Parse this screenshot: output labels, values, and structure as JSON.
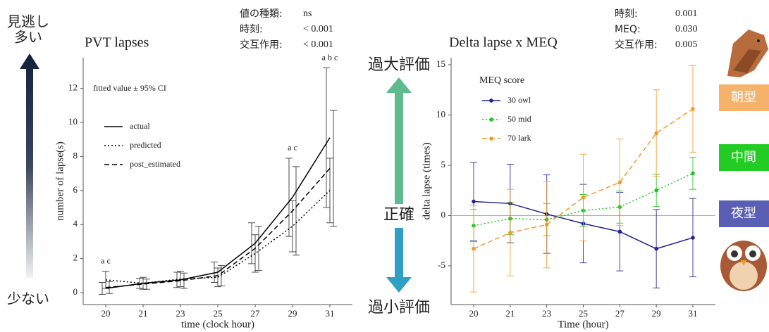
{
  "left_scale": {
    "top": [
      "見逃し",
      "多い"
    ],
    "bottom": "少ない"
  },
  "middle_scale": {
    "top": "過大評価",
    "middle": "正確",
    "bottom": "過小評価"
  },
  "chronotypes": [
    "朝型",
    "中間",
    "夜型"
  ],
  "chart_data": [
    {
      "type": "line",
      "title": "PVT lapses",
      "subtitle": "fitted value ± 95% CI",
      "x_label": "time (clock hour)",
      "y_label": "number of lapse(s)",
      "stats": [
        {
          "label": "値の種類:",
          "value": "ns"
        },
        {
          "label": "時刻:",
          "value": "< 0.001"
        },
        {
          "label": "交互作用:",
          "value": "< 0.001"
        }
      ],
      "categories": [
        "20",
        "21",
        "23",
        "25",
        "27",
        "29",
        "31"
      ],
      "ylim": [
        -0.7,
        13.8
      ],
      "yticks": [
        0,
        2,
        4,
        6,
        8,
        10,
        12
      ],
      "grid": false,
      "legend": "upper left",
      "series": [
        {
          "name": "actual",
          "color": "#000000",
          "dash": "solid",
          "values": [
            0.25,
            0.55,
            0.75,
            1.2,
            2.9,
            5.6,
            9.1
          ],
          "errors": [
            0.35,
            0.3,
            0.45,
            0.6,
            1.2,
            2.3,
            4.1
          ]
        },
        {
          "name": "predicted",
          "color": "#000000",
          "dash": "dotted",
          "values": [
            0.75,
            0.55,
            0.8,
            0.9,
            2.3,
            3.9,
            6.0
          ],
          "errors": [
            0.5,
            0.35,
            0.45,
            0.55,
            1.1,
            1.5,
            1.9
          ]
        },
        {
          "name": "post_estimated",
          "color": "#000000",
          "dash": "dashed",
          "values": [
            0.3,
            0.5,
            0.7,
            1.0,
            2.6,
            4.8,
            7.3
          ],
          "errors": [
            0.35,
            0.3,
            0.45,
            0.6,
            1.3,
            2.6,
            3.4
          ]
        }
      ],
      "letters": [
        "a c",
        null,
        null,
        null,
        null,
        "a c",
        "a b c"
      ]
    },
    {
      "type": "line",
      "title": "Delta lapse x MEQ",
      "x_label": "Time (hour)",
      "y_label": "delta lapse (times)",
      "stats": [
        {
          "label": "時刻:",
          "value": "0.001"
        },
        {
          "label": "MEQ:",
          "value": "0.030"
        },
        {
          "label": "交互作用:",
          "value": "0.005"
        }
      ],
      "categories": [
        "20",
        "21",
        "23",
        "25",
        "27",
        "29",
        "31"
      ],
      "ylim": [
        -8.85,
        15.7
      ],
      "yticks": [
        -5,
        0,
        5,
        10,
        15
      ],
      "grid": false,
      "legend": "upper left",
      "legend_title": "MEQ score",
      "reference_line": 0,
      "series": [
        {
          "name": "30 owl",
          "color": "#23238e",
          "dash": "solid",
          "values": [
            1.4,
            1.2,
            0.15,
            -0.8,
            -1.6,
            -3.3,
            -2.2
          ],
          "errors": [
            3.9,
            3.9,
            3.9,
            3.9,
            3.9,
            3.9,
            3.9
          ]
        },
        {
          "name": "50 mid",
          "color": "#22c322",
          "dash": "dotted",
          "values": [
            -1.0,
            -0.3,
            -0.4,
            0.5,
            0.85,
            2.5,
            4.2
          ],
          "errors": [
            1.6,
            1.6,
            1.6,
            1.6,
            1.6,
            1.6,
            1.6
          ]
        },
        {
          "name": "70 lark",
          "color": "#f39a2a",
          "dash": "dashed",
          "values": [
            -3.3,
            -1.7,
            -0.9,
            1.8,
            3.3,
            8.2,
            10.6
          ],
          "errors": [
            4.3,
            4.3,
            4.3,
            4.3,
            4.3,
            4.3,
            4.3
          ]
        }
      ]
    }
  ]
}
